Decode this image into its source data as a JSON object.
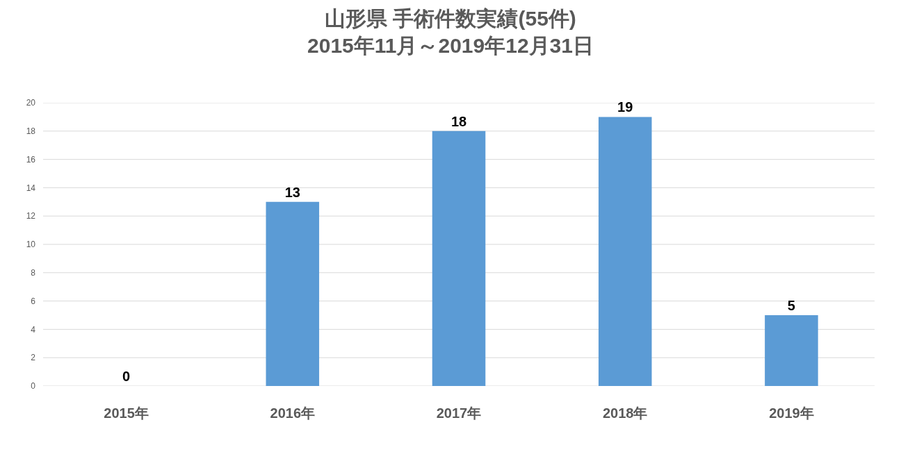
{
  "chart_data": {
    "type": "bar",
    "title": "山形県 手術件数実績(55件)\n2015年11月～2019年12月31日",
    "categories": [
      "2015年",
      "2016年",
      "2017年",
      "2018年",
      "2019年"
    ],
    "values": [
      0,
      13,
      18,
      19,
      5
    ],
    "color": "#5b9bd5",
    "ylim": [
      0,
      20
    ],
    "yticks": [
      0,
      2,
      4,
      6,
      8,
      10,
      12,
      14,
      16,
      18,
      20
    ],
    "grid": "y",
    "data_labels": true
  }
}
